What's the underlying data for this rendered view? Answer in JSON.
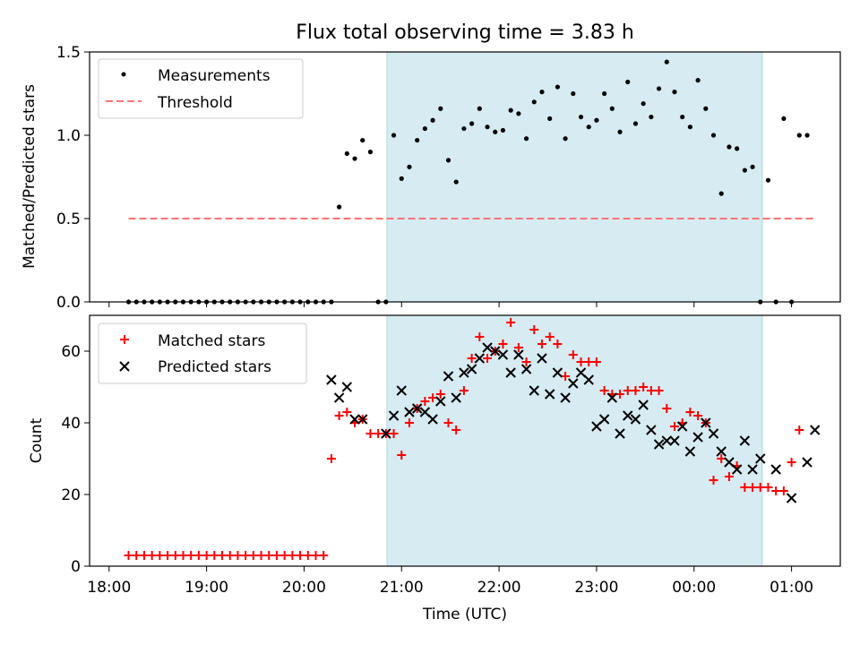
{
  "chart_data": [
    {
      "type": "scatter",
      "title": "Flux total observing time = 3.83 h",
      "ylabel": "Matched/Predicted stars",
      "xlabel": "",
      "ylim": [
        0,
        1.5
      ],
      "yticks": [
        0.0,
        0.5,
        1.0,
        1.5
      ],
      "ytick_labels": [
        "0.0",
        "0.5",
        "1.0",
        "1.5"
      ],
      "x_unit": "hours since 18:00 UTC",
      "xlim": [
        -0.2,
        7.5
      ],
      "shaded_interval": [
        2.85,
        6.7
      ],
      "threshold": {
        "value": 0.5,
        "x_range": [
          0.2,
          7.25
        ]
      },
      "legend": [
        "Measurements",
        "Threshold"
      ],
      "series": [
        {
          "name": "Measurements",
          "x": [
            0.2,
            0.28,
            0.36,
            0.44,
            0.52,
            0.6,
            0.68,
            0.76,
            0.84,
            0.92,
            1.0,
            1.08,
            1.16,
            1.24,
            1.32,
            1.4,
            1.48,
            1.56,
            1.64,
            1.72,
            1.8,
            1.88,
            1.96,
            2.04,
            2.12,
            2.2,
            2.28,
            2.36,
            2.44,
            2.52,
            2.6,
            2.68,
            2.76,
            2.84,
            2.92,
            3.0,
            3.08,
            3.16,
            3.24,
            3.32,
            3.4,
            3.48,
            3.56,
            3.64,
            3.72,
            3.8,
            3.88,
            3.96,
            4.04,
            4.12,
            4.2,
            4.28,
            4.36,
            4.44,
            4.52,
            4.6,
            4.68,
            4.76,
            4.84,
            4.92,
            5.0,
            5.08,
            5.16,
            5.24,
            5.32,
            5.4,
            5.48,
            5.56,
            5.64,
            5.72,
            5.8,
            5.88,
            5.96,
            6.04,
            6.12,
            6.2,
            6.28,
            6.36,
            6.44,
            6.52,
            6.6,
            6.68,
            6.76,
            6.84,
            6.92,
            7.0,
            7.08,
            7.16,
            7.24,
            7.32
          ],
          "y": [
            0,
            0,
            0,
            0,
            0,
            0,
            0,
            0,
            0,
            0,
            0,
            0,
            0,
            0,
            0,
            0,
            0,
            0,
            0,
            0,
            0,
            0,
            0,
            0,
            0,
            0,
            0,
            0.57,
            0.89,
            0.86,
            0.97,
            0.9,
            0,
            0,
            1.0,
            0.74,
            0.81,
            0.97,
            1.04,
            1.09,
            1.16,
            0.85,
            0.72,
            1.04,
            1.07,
            1.16,
            1.05,
            1.02,
            1.03,
            1.15,
            1.13,
            0.98,
            1.2,
            1.26,
            1.1,
            1.29,
            0.98,
            1.25,
            1.11,
            1.05,
            1.09,
            1.25,
            1.16,
            1.02,
            1.32,
            1.07,
            1.19,
            1.11,
            1.28,
            1.44,
            1.26,
            1.11,
            1.05,
            1.33,
            1.16,
            1.0,
            0.65,
            0.93,
            0.92,
            0.79,
            0.81,
            0,
            0.73,
            0,
            1.1,
            0,
            1.0,
            1.0,
            null,
            null
          ]
        },
        {
          "name": "Threshold",
          "x": [
            0.2,
            7.25
          ],
          "y": [
            0.5,
            0.5
          ]
        }
      ]
    },
    {
      "type": "scatter",
      "title": "",
      "ylabel": "Count",
      "xlabel": "Time (UTC)",
      "ylim": [
        0,
        70
      ],
      "yticks": [
        0,
        20,
        40,
        60
      ],
      "ytick_labels": [
        "0",
        "20",
        "40",
        "60"
      ],
      "x_unit": "hours since 18:00 UTC",
      "xlim": [
        -0.2,
        7.5
      ],
      "xticks": [
        0,
        1,
        2,
        3,
        4,
        5,
        6,
        7
      ],
      "xtick_labels": [
        "18:00",
        "19:00",
        "20:00",
        "21:00",
        "22:00",
        "23:00",
        "00:00",
        "01:00"
      ],
      "shaded_interval": [
        2.85,
        6.7
      ],
      "legend": [
        "Matched stars",
        "Predicted stars"
      ],
      "series": [
        {
          "name": "Matched stars",
          "x": [
            0.2,
            0.28,
            0.36,
            0.44,
            0.52,
            0.6,
            0.68,
            0.76,
            0.84,
            0.92,
            1.0,
            1.08,
            1.16,
            1.24,
            1.32,
            1.4,
            1.48,
            1.56,
            1.64,
            1.72,
            1.8,
            1.88,
            1.96,
            2.04,
            2.12,
            2.2,
            2.28,
            2.36,
            2.44,
            2.52,
            2.6,
            2.68,
            2.76,
            2.84,
            2.92,
            3.0,
            3.08,
            3.16,
            3.24,
            3.32,
            3.4,
            3.48,
            3.56,
            3.64,
            3.72,
            3.8,
            3.88,
            3.96,
            4.04,
            4.12,
            4.2,
            4.28,
            4.36,
            4.44,
            4.52,
            4.6,
            4.68,
            4.76,
            4.84,
            4.92,
            5.0,
            5.08,
            5.16,
            5.24,
            5.32,
            5.4,
            5.48,
            5.56,
            5.64,
            5.72,
            5.8,
            5.88,
            5.96,
            6.04,
            6.12,
            6.2,
            6.28,
            6.36,
            6.44,
            6.52,
            6.6,
            6.68,
            6.76,
            6.84,
            6.92,
            7.0,
            7.08,
            7.16,
            7.24,
            7.32
          ],
          "y": [
            3,
            3,
            3,
            3,
            3,
            3,
            3,
            3,
            3,
            3,
            3,
            3,
            3,
            3,
            3,
            3,
            3,
            3,
            3,
            3,
            3,
            3,
            3,
            3,
            3,
            3,
            30,
            42,
            43,
            40,
            41,
            37,
            37,
            37,
            37,
            31,
            40,
            44,
            46,
            47,
            48,
            40,
            38,
            49,
            58,
            64,
            58,
            60,
            62,
            68,
            61,
            57,
            66,
            62,
            64,
            62,
            53,
            59,
            57,
            57,
            57,
            49,
            48,
            48,
            49,
            49,
            50,
            49,
            49,
            44,
            39,
            40,
            43,
            42,
            40,
            24,
            30,
            25,
            28,
            22,
            22,
            22,
            22,
            21,
            21,
            29,
            38,
            null,
            null,
            null
          ]
        },
        {
          "name": "Predicted stars",
          "x": [
            2.28,
            2.36,
            2.44,
            2.52,
            2.6,
            2.84,
            2.92,
            3.0,
            3.08,
            3.16,
            3.24,
            3.32,
            3.4,
            3.48,
            3.56,
            3.64,
            3.72,
            3.8,
            3.88,
            3.96,
            4.04,
            4.12,
            4.2,
            4.28,
            4.36,
            4.44,
            4.52,
            4.6,
            4.68,
            4.76,
            4.84,
            4.92,
            5.0,
            5.08,
            5.16,
            5.24,
            5.32,
            5.4,
            5.48,
            5.56,
            5.64,
            5.72,
            5.8,
            5.88,
            5.96,
            6.04,
            6.12,
            6.2,
            6.28,
            6.36,
            6.44,
            6.52,
            6.6,
            6.68,
            6.84,
            7.0,
            7.16,
            7.24
          ],
          "y": [
            52,
            47,
            50,
            41,
            41,
            37,
            42,
            49,
            43,
            44,
            43,
            41,
            46,
            53,
            47,
            54,
            55,
            58,
            61,
            60,
            59,
            54,
            59,
            55,
            49,
            58,
            48,
            54,
            47,
            51,
            54,
            52,
            39,
            41,
            47,
            37,
            42,
            41,
            45,
            38,
            34,
            35,
            35,
            39,
            32,
            36,
            40,
            37,
            32,
            29,
            27,
            35,
            27,
            30,
            27,
            19,
            29,
            38
          ]
        }
      ]
    }
  ]
}
